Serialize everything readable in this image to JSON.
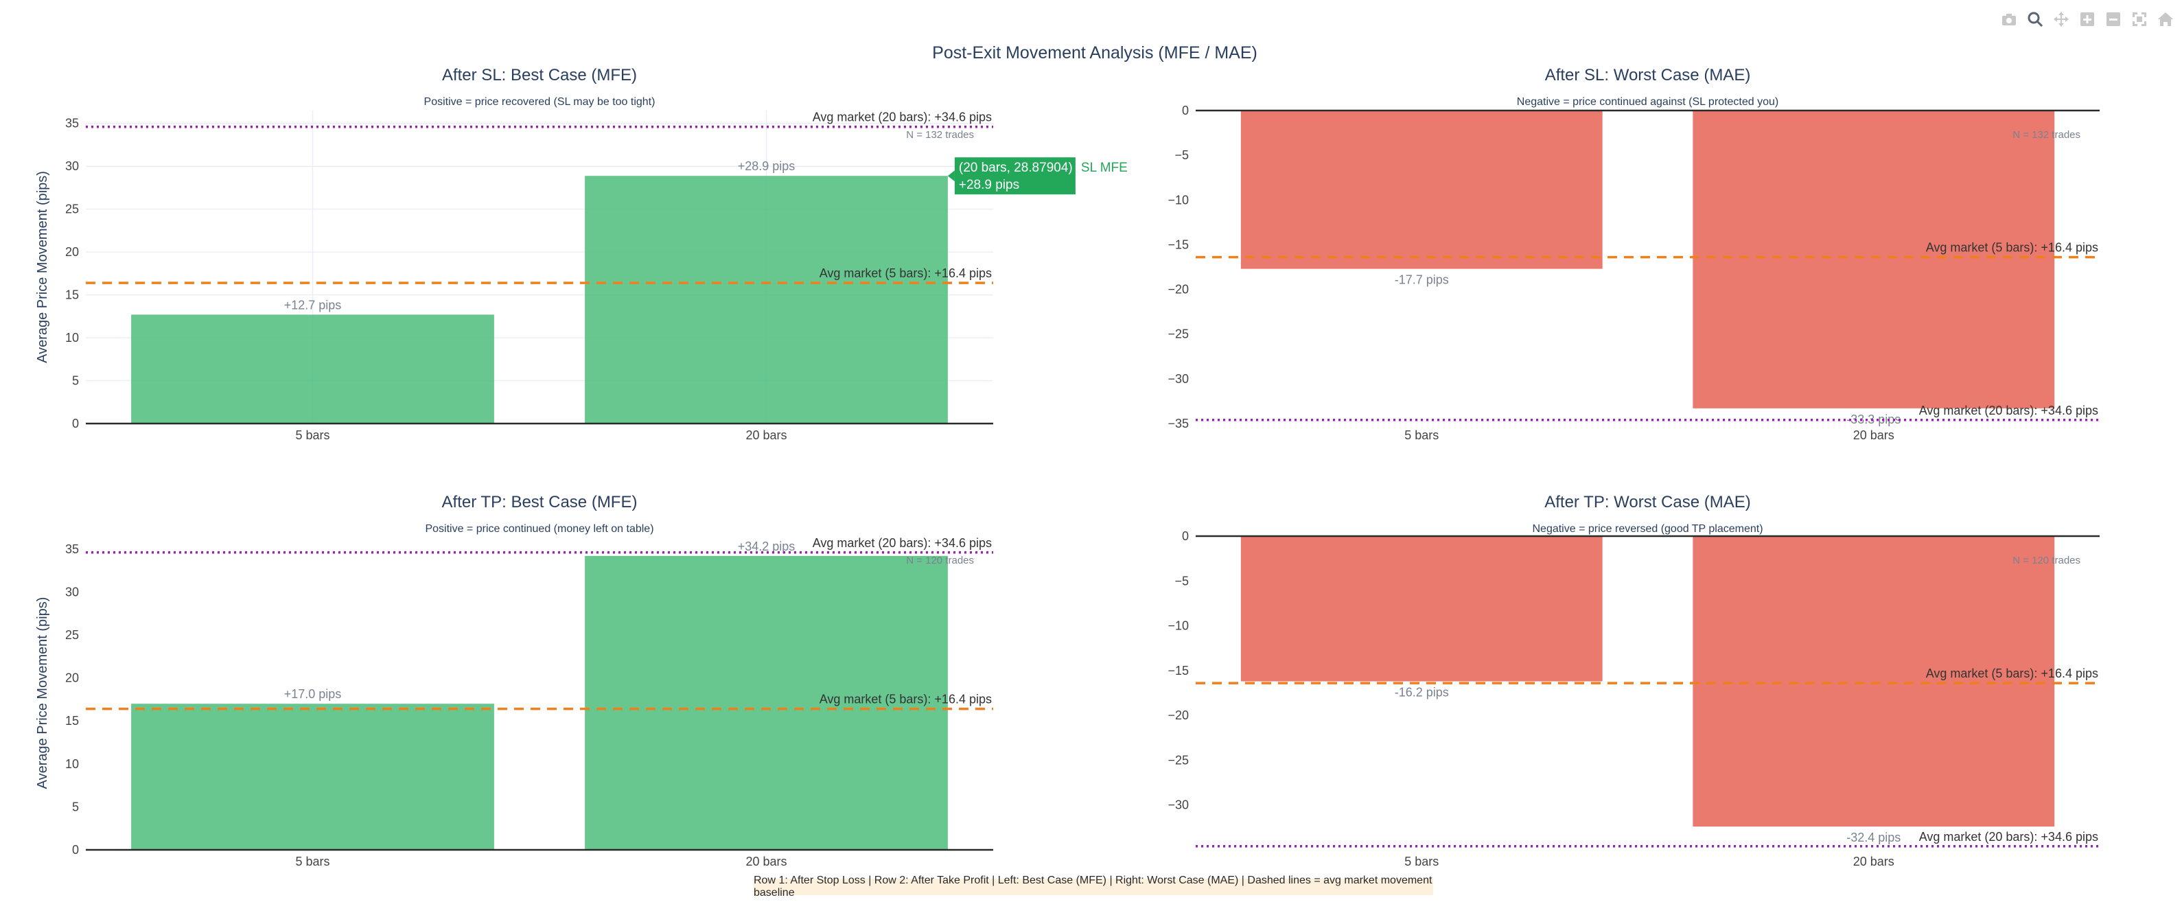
{
  "title": "Post-Exit Movement Analysis (MFE / MAE)",
  "footer_note": "Row 1: After Stop Loss | Row 2: After Take Profit | Left: Best Case (MFE) | Right: Worst Case (MAE) | Dashed lines = avg market movement baseline",
  "colors": {
    "positive_bar": "#52bf80",
    "negative_bar": "#e8685a",
    "baseline_5": "#f07f1e",
    "baseline_20": "#9b1fb0",
    "hover_bg": "#23a85a"
  },
  "modebar": {
    "icons": [
      "camera-icon",
      "zoom-icon",
      "pan-icon",
      "zoom-in-icon",
      "zoom-out-icon",
      "autoscale-icon",
      "home-icon"
    ]
  },
  "hover": {
    "line1": "(20 bars, 28.87904)",
    "line2": "+28.9 pips",
    "series": "SL MFE"
  },
  "chart_data": [
    {
      "type": "bar",
      "title": "After SL: Best Case (MFE)",
      "subtitle": "Positive = price recovered (SL may be too tight)",
      "ylabel": "Average Price Movement (pips)",
      "categories": [
        "5 bars",
        "20 bars"
      ],
      "values": [
        12.7,
        28.87904
      ],
      "data_labels": [
        "+12.7 pips",
        "+28.9 pips"
      ],
      "ylim": [
        0,
        36.5
      ],
      "yticks": [
        0,
        5,
        10,
        15,
        20,
        25,
        30,
        35
      ],
      "baselines": [
        {
          "value": 16.4,
          "label": "Avg market (5 bars): +16.4 pips",
          "style": "dash",
          "color": "#f07f1e"
        },
        {
          "value": 34.6,
          "label": "Avg market (20 bars): +34.6 pips",
          "style": "dot",
          "color": "#9b1fb0"
        }
      ],
      "n_label": "N = 132 trades",
      "bar_color": "#52bf80",
      "grid": true
    },
    {
      "type": "bar",
      "title": "After SL: Worst Case (MAE)",
      "subtitle": "Negative = price continued against (SL protected you)",
      "ylabel": "",
      "categories": [
        "5 bars",
        "20 bars"
      ],
      "values": [
        -17.7,
        -33.3
      ],
      "data_labels": [
        "-17.7 pips",
        "-33.3 pips"
      ],
      "ylim": [
        -35,
        0
      ],
      "yticks": [
        0,
        -5,
        -10,
        -15,
        -20,
        -25,
        -30,
        -35
      ],
      "baselines": [
        {
          "value": -16.4,
          "label": "Avg market (5 bars): +16.4 pips",
          "style": "dash",
          "color": "#f07f1e"
        },
        {
          "value": -34.6,
          "label": "Avg market (20 bars): +34.6 pips",
          "style": "dot",
          "color": "#9b1fb0"
        }
      ],
      "n_label": "N = 132 trades",
      "bar_color": "#e8685a",
      "grid": false
    },
    {
      "type": "bar",
      "title": "After TP: Best Case (MFE)",
      "subtitle": "Positive = price continued (money left on table)",
      "ylabel": "Average Price Movement (pips)",
      "categories": [
        "5 bars",
        "20 bars"
      ],
      "values": [
        17.0,
        34.2
      ],
      "data_labels": [
        "+17.0 pips",
        "+34.2 pips"
      ],
      "ylim": [
        0,
        36.5
      ],
      "yticks": [
        0,
        5,
        10,
        15,
        20,
        25,
        30,
        35
      ],
      "baselines": [
        {
          "value": 16.4,
          "label": "Avg market (5 bars): +16.4 pips",
          "style": "dash",
          "color": "#f07f1e"
        },
        {
          "value": 34.6,
          "label": "Avg market (20 bars): +34.6 pips",
          "style": "dot",
          "color": "#9b1fb0"
        }
      ],
      "n_label": "N = 120 trades",
      "bar_color": "#52bf80",
      "grid": false
    },
    {
      "type": "bar",
      "title": "After TP: Worst Case (MAE)",
      "subtitle": "Negative = price reversed (good TP placement)",
      "ylabel": "",
      "categories": [
        "5 bars",
        "20 bars"
      ],
      "values": [
        -16.2,
        -32.4
      ],
      "data_labels": [
        "-16.2 pips",
        "-32.4 pips"
      ],
      "ylim": [
        -35,
        0
      ],
      "yticks": [
        0,
        -5,
        -10,
        -15,
        -20,
        -25,
        -30
      ],
      "baselines": [
        {
          "value": -16.4,
          "label": "Avg market (5 bars): +16.4 pips",
          "style": "dash",
          "color": "#f07f1e"
        },
        {
          "value": -34.6,
          "label": "Avg market (20 bars): +34.6 pips",
          "style": "dot",
          "color": "#9b1fb0"
        }
      ],
      "n_label": "N = 120 trades",
      "bar_color": "#e8685a",
      "grid": false
    }
  ]
}
